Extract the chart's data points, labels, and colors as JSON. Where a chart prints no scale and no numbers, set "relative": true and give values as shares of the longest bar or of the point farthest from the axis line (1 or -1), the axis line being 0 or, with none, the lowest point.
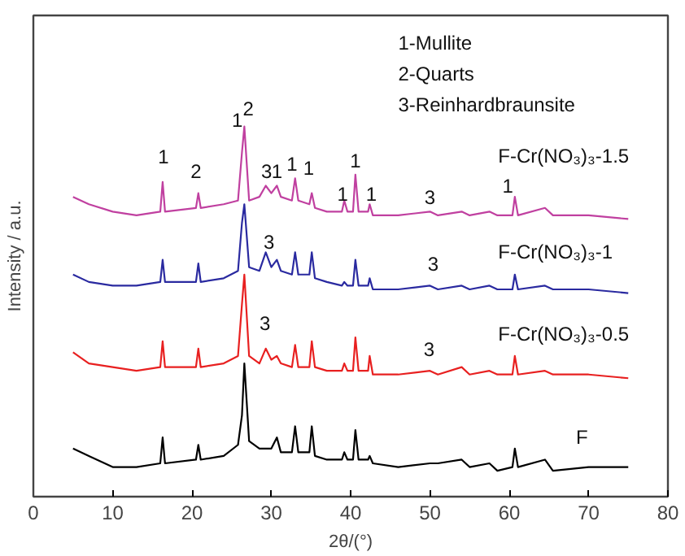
{
  "chart_data": {
    "type": "line",
    "relative": true,
    "xlabel": "2θ/(°)",
    "ylabel": "Intensity / a.u.",
    "xlim": [
      0,
      80
    ],
    "xticks": [
      0,
      10,
      20,
      30,
      40,
      50,
      60,
      70,
      80
    ],
    "grid": false,
    "legend": false,
    "marker": "none",
    "line_style": "solid",
    "x": [
      5,
      7,
      10,
      13,
      16.0,
      16.3,
      16.6,
      20.5,
      20.8,
      21.1,
      24,
      25.8,
      26.3,
      26.6,
      27.2,
      28.5,
      29.3,
      30.0,
      30.7,
      31.2,
      32.6,
      33.0,
      33.4,
      34.8,
      35.1,
      35.5,
      37,
      38.9,
      39.2,
      39.6,
      40.3,
      40.6,
      41.0,
      42.2,
      42.4,
      42.8,
      46,
      50,
      51,
      54,
      55,
      57.5,
      58.5,
      60.4,
      60.7,
      61.1,
      64.5,
      65.5,
      70,
      75
    ],
    "series": [
      {
        "name": "F-Cr(NO₃)₃-1.5",
        "color": "#c040a0",
        "values": [
          0.81,
          0.79,
          0.77,
          0.76,
          0.77,
          0.85,
          0.77,
          0.78,
          0.82,
          0.78,
          0.79,
          0.8,
          0.93,
          1.0,
          0.8,
          0.81,
          0.84,
          0.82,
          0.84,
          0.81,
          0.8,
          0.86,
          0.8,
          0.79,
          0.82,
          0.78,
          0.77,
          0.77,
          0.8,
          0.77,
          0.77,
          0.87,
          0.77,
          0.77,
          0.79,
          0.76,
          0.76,
          0.77,
          0.76,
          0.77,
          0.76,
          0.77,
          0.76,
          0.76,
          0.81,
          0.76,
          0.78,
          0.76,
          0.76,
          0.75
        ]
      },
      {
        "name": "F-Cr(NO₃)₃-1",
        "color": "#2a2aa0",
        "values": [
          0.6,
          0.58,
          0.57,
          0.57,
          0.58,
          0.64,
          0.58,
          0.58,
          0.63,
          0.58,
          0.59,
          0.61,
          0.74,
          0.79,
          0.62,
          0.61,
          0.66,
          0.62,
          0.64,
          0.61,
          0.6,
          0.66,
          0.6,
          0.6,
          0.66,
          0.59,
          0.58,
          0.57,
          0.58,
          0.57,
          0.57,
          0.64,
          0.57,
          0.57,
          0.59,
          0.56,
          0.56,
          0.57,
          0.56,
          0.57,
          0.56,
          0.57,
          0.56,
          0.56,
          0.6,
          0.56,
          0.57,
          0.56,
          0.56,
          0.55
        ]
      },
      {
        "name": "F-Cr(NO₃)₃-0.5",
        "color": "#e82020",
        "values": [
          0.39,
          0.36,
          0.35,
          0.34,
          0.35,
          0.42,
          0.35,
          0.35,
          0.4,
          0.35,
          0.36,
          0.38,
          0.52,
          0.6,
          0.38,
          0.36,
          0.4,
          0.37,
          0.38,
          0.36,
          0.35,
          0.41,
          0.35,
          0.35,
          0.42,
          0.35,
          0.34,
          0.34,
          0.36,
          0.34,
          0.34,
          0.43,
          0.34,
          0.34,
          0.38,
          0.33,
          0.33,
          0.34,
          0.33,
          0.35,
          0.33,
          0.34,
          0.33,
          0.33,
          0.38,
          0.33,
          0.34,
          0.33,
          0.33,
          0.32
        ]
      },
      {
        "name": "F",
        "color": "#000000",
        "values": [
          0.13,
          0.11,
          0.08,
          0.08,
          0.09,
          0.16,
          0.09,
          0.1,
          0.14,
          0.1,
          0.11,
          0.14,
          0.22,
          0.36,
          0.15,
          0.13,
          0.13,
          0.13,
          0.16,
          0.12,
          0.12,
          0.19,
          0.12,
          0.12,
          0.19,
          0.11,
          0.1,
          0.1,
          0.12,
          0.1,
          0.1,
          0.18,
          0.1,
          0.1,
          0.11,
          0.09,
          0.08,
          0.09,
          0.09,
          0.1,
          0.08,
          0.09,
          0.07,
          0.08,
          0.13,
          0.08,
          0.1,
          0.07,
          0.08,
          0.08
        ]
      }
    ],
    "annotations": [
      "1-Mullite",
      "2-Quarts",
      "3-Reinhardbraunsite",
      "1",
      "2",
      "1",
      "2",
      "3",
      "1",
      "1",
      "1",
      "1",
      "1",
      "1",
      "3",
      "1",
      "3",
      "3",
      "3",
      "3"
    ]
  }
}
